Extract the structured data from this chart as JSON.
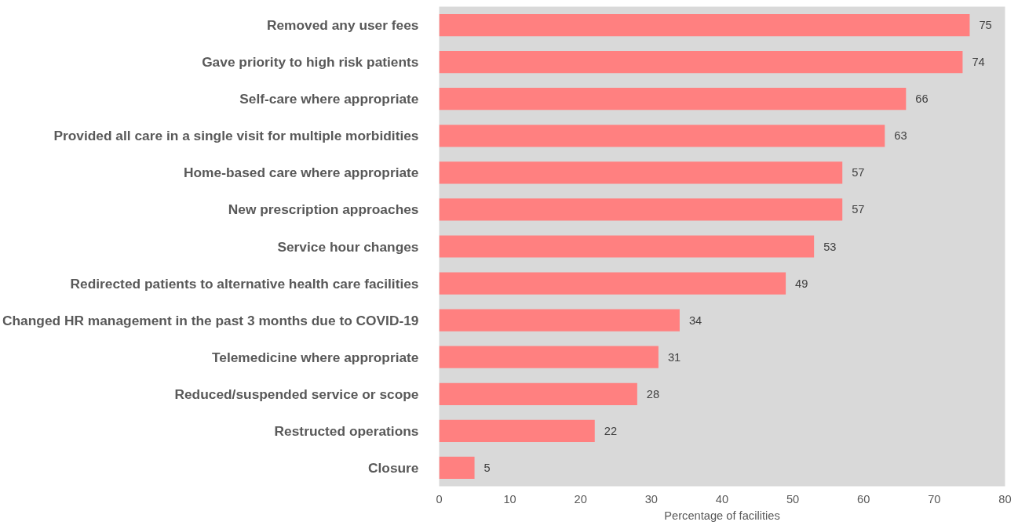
{
  "chart_data": {
    "type": "bar",
    "orientation": "horizontal",
    "xlabel": "Percentage of facilities",
    "categories": [
      "Removed any user fees",
      "Gave priority to high risk patients",
      "Self-care where appropriate",
      "Provided all care in a single visit for multiple morbidities",
      "Home-based care where appropriate",
      "New prescription approaches",
      "Service hour changes",
      "Redirected patients to alternative health care facilities",
      "Changed HR management in the past 3 months due to COVID-19",
      "Telemedicine where appropriate",
      "Reduced/suspended service or scope",
      "Restructed operations",
      "Closure"
    ],
    "values": [
      75,
      74,
      66,
      63,
      57,
      57,
      53,
      49,
      34,
      31,
      28,
      22,
      5
    ],
    "color": "#ff8080",
    "xlim": [
      0,
      80
    ],
    "xticks": [
      0,
      10,
      20,
      30,
      40,
      50,
      60,
      70,
      80
    ],
    "data_labels": true,
    "grid": false
  }
}
